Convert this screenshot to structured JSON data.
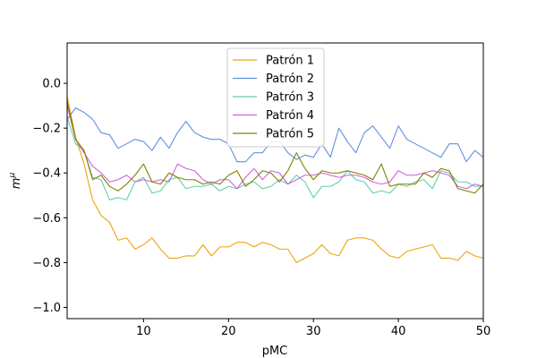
{
  "chart_data": {
    "type": "line",
    "xlabel": "pMC",
    "ylabel": "m",
    "ylabel_sup": "μ",
    "xlim": [
      1,
      50
    ],
    "ylim": [
      -1.05,
      0.18
    ],
    "xticks": [
      10,
      20,
      30,
      40,
      50
    ],
    "yticks": [
      -1.0,
      -0.8,
      -0.6,
      -0.4,
      -0.2,
      0.0
    ],
    "xtick_labels": [
      "10",
      "20",
      "30",
      "40",
      "50"
    ],
    "ytick_labels": [
      "−1.0",
      "−0.8",
      "−0.6",
      "−0.4",
      "−0.2",
      "0.0"
    ],
    "grid": false,
    "legend_position": "top-center",
    "x": [
      1,
      2,
      3,
      4,
      5,
      6,
      7,
      8,
      9,
      10,
      11,
      12,
      13,
      14,
      15,
      16,
      17,
      18,
      19,
      20,
      21,
      22,
      23,
      24,
      25,
      26,
      27,
      28,
      29,
      30,
      31,
      32,
      33,
      34,
      35,
      36,
      37,
      38,
      39,
      40,
      41,
      42,
      43,
      44,
      45,
      46,
      47,
      48,
      49,
      50
    ],
    "series": [
      {
        "name": "Patrón 1",
        "color": "#f0a30a",
        "values": [
          -0.06,
          -0.24,
          -0.36,
          -0.52,
          -0.59,
          -0.62,
          -0.7,
          -0.69,
          -0.74,
          -0.72,
          -0.69,
          -0.74,
          -0.78,
          -0.78,
          -0.77,
          -0.77,
          -0.72,
          -0.77,
          -0.73,
          -0.73,
          -0.71,
          -0.71,
          -0.73,
          -0.71,
          -0.72,
          -0.74,
          -0.74,
          -0.8,
          -0.78,
          -0.76,
          -0.72,
          -0.76,
          -0.77,
          -0.7,
          -0.69,
          -0.69,
          -0.7,
          -0.74,
          -0.77,
          -0.78,
          -0.75,
          -0.74,
          -0.73,
          -0.72,
          -0.78,
          -0.78,
          -0.79,
          -0.75,
          -0.77,
          -0.78
        ]
      },
      {
        "name": "Patrón 2",
        "color": "#6090e0",
        "values": [
          -0.16,
          -0.11,
          -0.13,
          -0.16,
          -0.22,
          -0.23,
          -0.29,
          -0.27,
          -0.25,
          -0.26,
          -0.3,
          -0.24,
          -0.29,
          -0.22,
          -0.17,
          -0.22,
          -0.24,
          -0.25,
          -0.25,
          -0.27,
          -0.35,
          -0.35,
          -0.31,
          -0.31,
          -0.26,
          -0.26,
          -0.31,
          -0.34,
          -0.32,
          -0.33,
          -0.27,
          -0.33,
          -0.2,
          -0.26,
          -0.31,
          -0.22,
          -0.19,
          -0.24,
          -0.29,
          -0.19,
          -0.25,
          -0.27,
          -0.29,
          -0.31,
          -0.33,
          -0.27,
          -0.27,
          -0.35,
          -0.3,
          -0.33
        ]
      },
      {
        "name": "Patrón 3",
        "color": "#60d0a8",
        "values": [
          -0.15,
          -0.27,
          -0.3,
          -0.42,
          -0.43,
          -0.52,
          -0.51,
          -0.52,
          -0.44,
          -0.42,
          -0.49,
          -0.48,
          -0.43,
          -0.42,
          -0.47,
          -0.46,
          -0.46,
          -0.45,
          -0.48,
          -0.46,
          -0.47,
          -0.45,
          -0.44,
          -0.47,
          -0.46,
          -0.43,
          -0.45,
          -0.41,
          -0.44,
          -0.51,
          -0.46,
          -0.46,
          -0.44,
          -0.39,
          -0.43,
          -0.44,
          -0.49,
          -0.48,
          -0.49,
          -0.45,
          -0.46,
          -0.44,
          -0.43,
          -0.47,
          -0.39,
          -0.4,
          -0.44,
          -0.44,
          -0.46,
          -0.46
        ]
      },
      {
        "name": "Patrón 4",
        "color": "#d060e0",
        "values": [
          -0.1,
          -0.25,
          -0.31,
          -0.37,
          -0.4,
          -0.44,
          -0.43,
          -0.41,
          -0.44,
          -0.43,
          -0.44,
          -0.43,
          -0.44,
          -0.36,
          -0.38,
          -0.39,
          -0.43,
          -0.45,
          -0.43,
          -0.43,
          -0.47,
          -0.42,
          -0.38,
          -0.43,
          -0.39,
          -0.4,
          -0.45,
          -0.43,
          -0.41,
          -0.41,
          -0.4,
          -0.41,
          -0.42,
          -0.41,
          -0.41,
          -0.42,
          -0.44,
          -0.45,
          -0.44,
          -0.39,
          -0.41,
          -0.41,
          -0.4,
          -0.39,
          -0.4,
          -0.41,
          -0.46,
          -0.47,
          -0.45,
          -0.46
        ]
      },
      {
        "name": "Patrón 5",
        "color": "#808000",
        "values": [
          -0.08,
          -0.25,
          -0.3,
          -0.43,
          -0.41,
          -0.46,
          -0.48,
          -0.45,
          -0.41,
          -0.36,
          -0.44,
          -0.45,
          -0.4,
          -0.42,
          -0.43,
          -0.43,
          -0.45,
          -0.44,
          -0.45,
          -0.41,
          -0.39,
          -0.46,
          -0.43,
          -0.39,
          -0.4,
          -0.44,
          -0.39,
          -0.31,
          -0.38,
          -0.43,
          -0.39,
          -0.4,
          -0.4,
          -0.39,
          -0.4,
          -0.41,
          -0.43,
          -0.36,
          -0.46,
          -0.45,
          -0.45,
          -0.45,
          -0.4,
          -0.42,
          -0.38,
          -0.39,
          -0.47,
          -0.48,
          -0.49,
          -0.45
        ]
      }
    ]
  }
}
